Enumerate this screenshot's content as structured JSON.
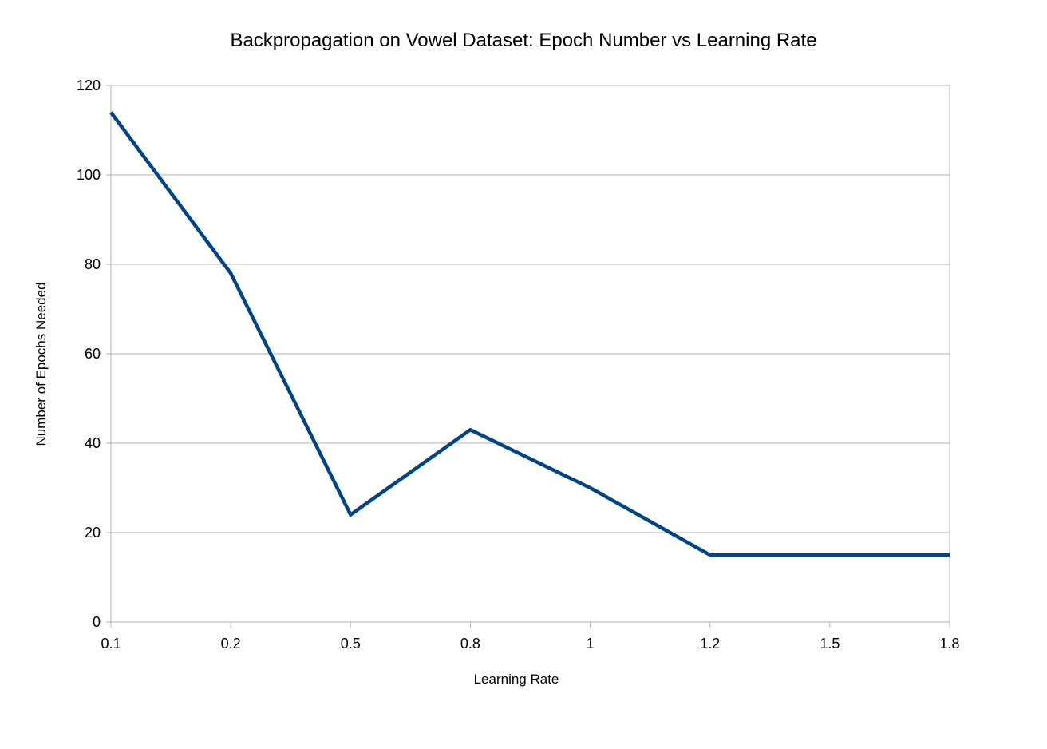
{
  "chart_data": {
    "type": "line",
    "title": "Backpropagation on Vowel Dataset: Epoch Number vs Learning Rate",
    "xlabel": "Learning Rate",
    "ylabel": "Number of Epochs Needed",
    "categories": [
      "0.1",
      "0.2",
      "0.5",
      "0.8",
      "1",
      "1.2",
      "1.5",
      "1.8"
    ],
    "series": [
      {
        "values": [
          114,
          78,
          24,
          43,
          30,
          15,
          15,
          15
        ],
        "color": "#004586"
      }
    ],
    "ylim": [
      0,
      120
    ],
    "yticks": [
      "0",
      "20",
      "40",
      "60",
      "80",
      "100",
      "120"
    ],
    "grid": true,
    "legend": "none"
  }
}
